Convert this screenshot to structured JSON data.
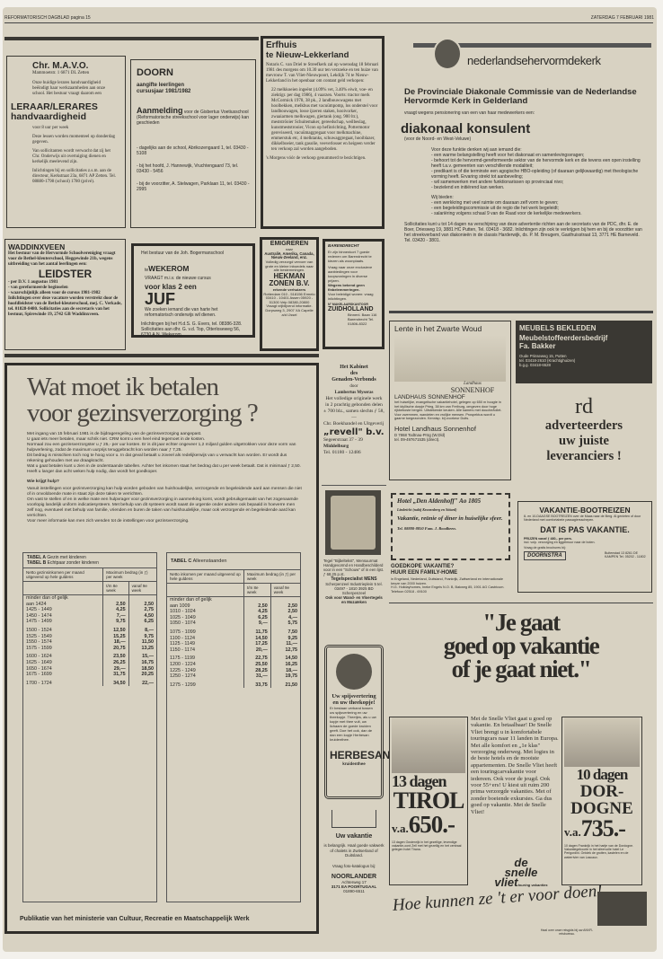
{
  "header": {
    "left": "REFORMATORISCH DAGBLAD pagina 15",
    "right": "ZATERDAG 7 FEBRUARI 1981"
  },
  "mavo": {
    "title": "Chr. M.A.V.O.",
    "address": "Mammoetstr. 1 6871 DL Zetten",
    "intro": "Onze huidige lerares handvaardigheid beëindigt haar werkzaamheden aan onze school. Het bestuur vraagt daarom een",
    "job": "LERAAR/LERARES",
    "job2": "handvaardigheid",
    "hours": "voor 8 uur per week",
    "p1": "Deze lessen worden momenteel op donderdag gegeven.",
    "p2": "Van sollicitanten wordt verwacht dat zij het Chr. Onderwijs uit overtuiging dienen en kerkelijk meelevend zijn.",
    "p3": "Inlichtingen bij en sollicitaties z.s.m. aan de directeur, Kerkstraat 23a, 6871 AP Zetten. Tel. 08880-1798 (school) 1780 (privé)."
  },
  "doorn": {
    "title": "DOORN",
    "sub1": "aangifte leerlingen",
    "sub2": "cursusjaar 1981/1982",
    "aanmelding": "Aanmelding",
    "text": "voor de Gisbertus Voetiusschool (Reformatorische streekschool voor lager onderwijs) kan geschieden",
    "l1": "- dagelijks aan de school, Abrikozengaard 1, tel. 03430 - 5108",
    "l2": "- bij het hoofd, J. Hannewijk, Vruchtengaard 73, tel. 03430 - 5456",
    "l3": "- bij de voorzitter, A. Stelwagen, Parklaan 11, tel. 03430 - 2995"
  },
  "erfhuis": {
    "title1": "Erfhuis",
    "title2": "te Nieuw-Lekkerland",
    "intro": "Notaris C. van Driel te Streefkerk zal op woensdag 18 februari 1981 des morgens om 10.30 uur ten verzoeke en ten huize van mevrouw T. van Vliet-Nieuwpoort, Lekdijk 74 te Nieuw-Lekkerland in het openbaar om contant geld verkopen:",
    "items": "22 melkkoeien ingeënt (4.09% vet, 3.40% eiwit, voe- en ziektigr. per dag 1986), 4 vaarzen. Voorts: tractor merk McCormick 1978, 38 pk., 2 landbouwwagens met hoolbekken, melkbus met vacuümpomp, los onderstel voor landbouwagen, losse ijzeren staken, hooivorker, zwaaiarmen melkwagen, giertank (ong. 900 ltr.), mestströoier Schuitemaker, gereedschap, weilbeslag, kunstmeststrooier, Vicon op hefinrichting, Pottermotor gereviseerd, vacuümaggregaat voor melkmachine, emmerstuk etc, 4 melktanks, schuwaggregaat, hooiblazer, dikkelboeier, tank gasolie, veeverlosser en heigeen verder ten verkoop zal worden aangeboden.",
    "footer": "'s Morgens vóór de verkoop genummerd te bezichtigen."
  },
  "nhk": {
    "logo": "nederlandsehervormdekerk",
    "title": "De Provinciale Diakonale Commissie van de Nederlandse Hervormde Kerk in Gelderland",
    "vraagt": "vraagt wegens pensionering van een van haar medewerkers een:",
    "job": "diakonaal konsulent",
    "region": "(voor de Noord- en West-Veluwe)",
    "intro": "Voor deze funktie denken wij aan iemand die:",
    "reqs": [
      "een warme belangstelling heeft voor het diakonaat en samenlevingsvragen;",
      "behoort tot de hervormd-gereformeerde sektor van de hervormde kerk en die tevens een open instelling heeft t.a.v. gemeenten van verschillende modaliteit;",
      "predikant is of die terminste een agogische HBO-opleiding (of daaraan gelijkwaardig) met theologische vorming heeft. Ervaring strekt tot aanbeveling;",
      "wil samenwerken met andere funktionarissen op provinciaal nivo;",
      "bezielend en initiërend kan werken."
    ],
    "offer_intro": "Wij bieden:",
    "offers": [
      "een werkkring met veel ruimte om daaraan zelf vorm te geven;",
      "een begeleidingscommissie uit de regio die het werk begeleidt;",
      "salariëring volgens schaal 9 van de Raad voor de kerkelijke medewerkers."
    ],
    "apply": "Sollicitaties kunt u tot 14 dagen na verschijning van deze advertentie richten aan de secretaris van de PDC, dhr. E. de Boer, Driesweg 19, 3881 HC Putten, Tel. 03418 - 3682. Inlichtingen zijn ook te verkrijgen bij hem en bij de voorzitter van het streekverband van diakonieën in de classis Harderwijk, ds. P. M. Breugem, Gasthuisstraat 13, 3771 HE Barneveld. Tel. 03420 - 3801."
  },
  "waddinxveen": {
    "title": "WADDINXVEEN",
    "intro": "Het bestuur van de Hervormde Schoolvereniging vraagt voor de Bethel-kleuterschool, Heggewinde 21b, wegens uitbreiding van het aantal leerlingen een:",
    "job": "LEIDSTER",
    "l1": "- per D.V. 1 augustus 1981",
    "l2": "- van gereformeerde beginselen",
    "l3": "- waarschijnlijk alleen voor de cursus 1981-1982",
    "text": "Inlichtingen over deze vacature worden verstrekt door de hoofdleidster van de Bethel-kleuterschool, mej. C. Verkade, tel. 01828-8480. Sollicitaties aan de secretaris van het bestuur, Spirewinde 19, 2742 GB Waddinxveen."
  },
  "wekerom": {
    "intro": "Het bestuur van de Joh. Bogermanschool",
    "te": "te",
    "place": "WEKEROM",
    "vraagt": "VRAAGT m.i.v. de nieuwe cursus",
    "klas": "voor klas 2 een",
    "job": "JUF",
    "text": "We zoeken iemand die van harte het reformatorisch onderwijs wil dienen.",
    "info": "Inlichtingen bij het H.d.S. G. Evers, tel. 08386-328. Sollicitaties aan dhr. G. v.d. Top, Otterloseweg 56, 6730 A.N. Wekerom."
  },
  "emigreren": {
    "title": "EMIGREREN",
    "naar": "naar",
    "countries": "Australië, Amerika, Canada, Nieuw-Zeeland, enz.",
    "text": "Volledig verzorgd vervoer van grote en kleine inboedels naar alle bestemmingen.",
    "firm": "HEKMAN ZONEN B.V.",
    "sub": "erkende verhuizers",
    "tel": "Rotterdam 010 - 518156 Ermelo 03410 - 10401 Assen 05920 - 51300 Velp 08380-20800",
    "note": "Vraagt vrijblijvend informatie.",
    "addr": "Dorpsweg 3, 2907 XA Capelle a/d IJssel"
  },
  "barendrecht": {
    "title": "BARENDRECHT",
    "p1": "Er zijn binnenkort 7 goede redenen om Barendrecht te kiezen als woonplaats.",
    "p2": "Vraag naar onze exclusieve aanbiedingen voor koopwoningen in diverse prijzen.",
    "p3": "Wegens bekend geen finbelemmeringen.",
    "p4": "Voor beleidigd wonen: vraag inlichtingen.",
    "firm": "ZUIDHOLLAND",
    "firm_pre": "N° MAKELAARSKANTOOR",
    "addr": "Binnenl. Baan 116 Barendrecht Tel. 01806-8322"
  },
  "gezins": {
    "title1": "Wat moet ik betalen",
    "title2": "voor gezinsverzorging ?",
    "body": [
      "Met ingang van 15 februari 1981 is de bijdrageregeling van de gezinsverzorging aangepast.",
      "U gaat iets meer betalen, maar schrik niet. CRM komt u een heel eind tegemoet in de kosten.",
      "Normaal zou een gezinsverzorgster u ƒ 25,- per uur kosten. Er is dit jaar echter ongeveer 1,2 miljard gulden uitgetrokken voor deze vorm van hulpverlening, zodat de maximum uurprijs teruggebracht kon worden naar ƒ 7,25.",
      "Dit bedrag is misschien toch nog te hoog voor u. In dat geval betaalt u zoveel als redelijkerwijs van u verwacht kan worden. Er wordt dus rekening gehouden met uw draagkracht.",
      "Wat u gaat betalen kunt u zien in de onderstaande tabellen. Achter het inkomen staat het bedrag dat u per week betaalt. Dat is minimaal ƒ 2,50. Heeft u langer dan acht weken hulp nodig, dan wordt het goedkoper."
    ],
    "sub": "Wie krijgt hulp?",
    "body2": [
      "Vanuit instellingen voor gezinsverzorging kan hulp worden geboden van huishoudelijke, verzorgende en begeleidende aard aan mensen die niet of in onvoldoende mate in staat zijn deze taken te verrichten.",
      "Om vast te stellen of en in welke mate een hulpvrager voor gezinsverzorging in aanmerking komt, wordt gebruikgemaakt van het zogenaamde voorlopig landelijk uniform indicatiesysteem. Met behulp van dit systeem wordt naast de urgentie onder andere ook bepaald in hoeverre men zelf nog, eventueel met behulp van familie, vrienden en buren de taken van huishoudelijke, maar ook verzorgende en begeleidende aard kan verrichten.",
      "Voor meer informatie kan men zich wenden tot de instellingen voor gezinsverzorging."
    ],
    "tableA": {
      "title1": "TABEL A",
      "desc1": "Gezin met kinderen",
      "title2": "TABEL B",
      "desc2": "Echtpaar zonder kinderen",
      "col0": "Netto gezinsinkomen per maand uitgevend op hele guldens",
      "colh": "Maximum bedrag (in ƒ) per week",
      "col1": "t/m 8e week",
      "col2": "vanaf 9e week",
      "first": "minder dan of gelijk",
      "rows": [
        [
          "aan 1424",
          "2,50",
          "2,50"
        ],
        [
          "1425 - 1449",
          "4,25",
          "2,75"
        ],
        [
          "1450 - 1474",
          "7,—",
          "4,50"
        ],
        [
          "1475 - 1499",
          "9,75",
          "6,25"
        ],
        [
          "1500 - 1524",
          "12,50",
          "8,—"
        ],
        [
          "1525 - 1549",
          "15,25",
          "9,75"
        ],
        [
          "1550 - 1574",
          "18,—",
          "11,50"
        ],
        [
          "1575 - 1599",
          "20,75",
          "13,25"
        ],
        [
          "1600 - 1624",
          "23,50",
          "15,—"
        ],
        [
          "1625 - 1649",
          "26,25",
          "16,75"
        ],
        [
          "1650 - 1674",
          "29,—",
          "18,50"
        ],
        [
          "1675 - 1699",
          "31,75",
          "20,25"
        ],
        [
          "1700 - 1724",
          "34,50",
          "22,—"
        ]
      ]
    },
    "tableC": {
      "title": "TABEL C",
      "desc": "Alleenstaanden",
      "col0": "Netto inkomen per maand uitgevend op hele guldens",
      "colh": "Maximum bedrag (in ƒ) per week",
      "col1": "t/m 8e week",
      "col2": "vanaf 9e week",
      "first": "minder dan of gelijk",
      "rows": [
        [
          "aan 1009",
          "2,50",
          "2,50"
        ],
        [
          "1010 - 1024",
          "4,25",
          "2,50"
        ],
        [
          "1025 - 1049",
          "6,25",
          "4,—"
        ],
        [
          "1050 - 1074",
          "9,—",
          "5,75"
        ],
        [
          "1075 - 1099",
          "11,75",
          "7,50"
        ],
        [
          "1100 - 1124",
          "14,50",
          "9,25"
        ],
        [
          "1125 - 1149",
          "17,25",
          "11,—"
        ],
        [
          "1150 - 1174",
          "20,—",
          "12,75"
        ],
        [
          "1175 - 1199",
          "22,75",
          "14,50"
        ],
        [
          "1200 - 1224",
          "25,50",
          "16,25"
        ],
        [
          "1225 - 1249",
          "28,25",
          "18,—"
        ],
        [
          "1250 - 1274",
          "31,—",
          "19,75"
        ],
        [
          "1275 - 1299",
          "33,75",
          "21,50"
        ]
      ]
    },
    "footer": "Publikatie van het ministerie van Cultuur, Recreatie en Maatschappelijk Werk"
  },
  "kabinet": {
    "t1": "Het Kabinet",
    "t2": "des",
    "t3": "Genaden-Verbonds",
    "door": "door",
    "author": "Lambertus Myseras",
    "text": "Het volledige originele werk in 2 prachtig gebonden delen ± 700 blz., samen slechts ƒ 58,—",
    "pub": "Chr. Boekhandel en Uitgeverij",
    "firm": "„revell\" b.v.",
    "addr": "Segeerstraat 37 - 39",
    "city": "Middelburg",
    "tel": "Tel. 01180 - 12486"
  },
  "tegel": {
    "text": "Tegel \"Bijbeltekst\", Mensuurmat Handgevormd en Handbeschilderd voor in een \"Schouw\" of in een lijst.",
    "price": "ƒ 68,25 p.st.",
    "firm": "Tegelspecialist MENS",
    "addr": "Scherpenzeel Industrieplein 5 tel. 03497 - 1810 3925 BD Scherpenzeel",
    "note": "Ook voor Wand- en Vloertegels en Mozaïeken"
  },
  "herbesan": {
    "title": "Uw spijsvertering en uw theekopje!",
    "text": "Er bestaan verband tussen uw spijsvertering en uw theekopje. Theetjes, als u uw kopje met thee vult, uw lichaam de goede kruiden geeft. Doe het ook, dan de dan een kopje Herbesan kruidenthee.",
    "brand": "HERBESAN",
    "sub": "kruidenthee"
  },
  "noorlander": {
    "title": "Uw vakantie",
    "text": "is belangrijk. Haal goede vakwerk of chalets in Zwitserland of Duitsland.",
    "vraag": "Vraag foto-katalogus bij:",
    "firm": "NOORLANDER",
    "addr": "Achterweg 17",
    "city": "3171 EA POORTUGAAL",
    "tel": "01890-6511"
  },
  "sonnenhof": {
    "title": "Lente in het Zwarte Woud",
    "logo1": "Landhaus",
    "logo2": "SONNENHOF",
    "name": "LANDHAUS SONNENHOF",
    "text": "het huiselijke, evangelische vakantiehotel, gelegen op 650 m hoogte in het idyllische dorpje Prieg, 38 km van Freiburg, omgeven door hoge rijkbeboste bergen. Uitstekende keuken. Alle kamers met douche/toilet. Voor zwemmen, wandelen en vrolijke mensen. Prospektus wordt u gaarne toegezonden. Kennisp. bij voorkeur Duits.",
    "hotel": "Hotel Landhaus Sonnenhof",
    "addr": "D 7868 Todtnau-Prög (W.Dld)",
    "tel": "tel. 09-497671535 (direct)."
  },
  "bakker": {
    "t1": "MEUBELS BEKLEDEN",
    "t2": "Meubelstoffeerdersbedrijf",
    "t3": "Fa. Bakker",
    "addr": "Oude Prinseweg 15, Putten",
    "tel": "tel. 03418-2610 (Krachtighuizen)",
    "tel2": "b.g.g. 03418-6528"
  },
  "rd": {
    "logo": "rd",
    "l1": "adverteerders",
    "l2": "uw juiste",
    "l3": "leveranciers !"
  },
  "aldenhoff": {
    "title": "Hotel „Den Aldenhoff\" Ao 1805",
    "loc": "Limbricht (nabij Kronenberg en Sittard)",
    "text": "Vakantie, reünie of diner in huiselijke sfeer.",
    "tel": "Tel. 08880-8850 Fam. J. Roodbeen."
  },
  "family": {
    "t1": "GOEDKOPE VAKANTIE?",
    "t2": "HUUR EEN FAMILY-HOME",
    "text": "in Engeland, Nederland, Duitsland, Frankrijk, Zwitserland en internationale keuze van 2000 huizen.",
    "addr": "H.G. Holidayhomes, Ineke Engels N.O. B, Bakweg 85, 1901 AG Castricum. Telefoon 02518 - 69100"
  },
  "boot": {
    "title": "VAKANTIE-BOOTREIZEN",
    "text": "8- en 10-DAAGSE BOOTREIZEN over de Maas naar de Berg. Al genieten of door Nederland met comfortabele passagiersschepen.",
    "slogan": "DAT IS PAS VAKANTIE.",
    "prices": "PRIJZEN vanaf ƒ 480,- per pers.",
    "inc": "incl. volp. verzorging en liggelmuur naar de boten.",
    "ask": "Vraag de gratis brochures bij:",
    "firm": "DOORNSTRA",
    "addr": "Buitenstad 13 8261 DE KAMPEN Tel. 05202 - 11802"
  },
  "vliet": {
    "q1": "\"Je gaat",
    "q2": "goed op vakantie",
    "q3": "of je gaat niet.\"",
    "body": "Met de Snelle Vliet gaat u goed op vakantie. En betaalbaar! De Snelle Vliet brengt u in komfortabele touringcars naar 11 landen in Europa. Met alle komfort en „1e klas\" verzorging onderweg. Met logies in de beste hotels en de mooiste appartementen. De Snelle Vliet heeft een touringcarvakantie voor iedereen. Ook voor de jeugd. Ook voor 55+ers! U kiest uit ruim 200 prima verzorgde vakanties. Met of zonder boeiende exkursies. Ga dus goed op vakantie. Met de Snelle Vliet!",
    "tirol1": "13 dagen",
    "tirol2": "TIROL",
    "tirol3": "v.a.",
    "tirol4": "650.-",
    "tirol_text": "13 dagen Oostenrijk in het gezellige, levendige vakantie-oord Zell met het gezellig en het centraal gelegen hotel Tirana.",
    "dor1": "10 dagen",
    "dor2": "DOR-",
    "dor3": "DOGNE",
    "dor4": "v.a.",
    "dor5": "735.-",
    "dor_text": "10 dagen Frankrijk in het hartje van de Dordogne. Vakantiegeboorte in het sfeervolle hotel Le Perigordini. Ontdek de grotten, kastelen en de waterrivier van Lascaux.",
    "brand1": "de",
    "brand2": "snelle",
    "brand3": "vliet",
    "brand4": "touring vakanties",
    "slogan": "Hoe kunnen ze 't er voor doen!",
    "small": "Haal over onze reisgids bij uw ANVR-reisbureau."
  }
}
